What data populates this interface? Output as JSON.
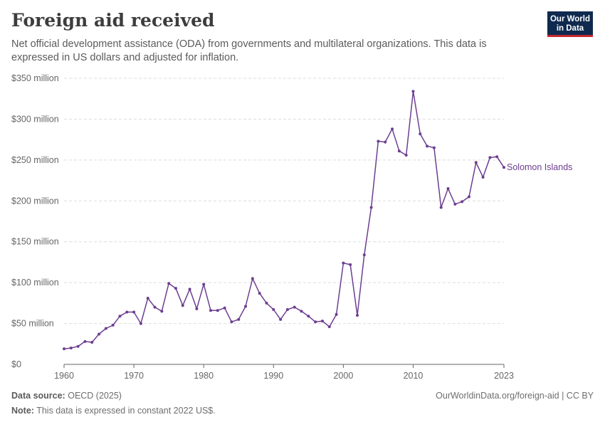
{
  "header": {
    "title": "Foreign aid received",
    "subtitle": "Net official development assistance (ODA) from governments and multilateral organizations. This data is expressed in US dollars and adjusted for inflation.",
    "logo_line1": "Our World",
    "logo_line2": "in Data"
  },
  "footer": {
    "source_label": "Data source:",
    "source_value": "OECD (2025)",
    "note_label": "Note:",
    "note_value": "This data is expressed in constant 2022 US$.",
    "url": "OurWorldinData.org/foreign-aid | CC BY"
  },
  "colors": {
    "series": "#6d3e91",
    "grid": "#dddddd",
    "axis": "#666666"
  },
  "chart_data": {
    "type": "line",
    "xlim": [
      1960,
      2023
    ],
    "ylim": [
      0,
      350
    ],
    "x_ticks": [
      1960,
      1970,
      1980,
      1990,
      2000,
      2010,
      2023
    ],
    "y_ticks": [
      0,
      50,
      100,
      150,
      200,
      250,
      300,
      350
    ],
    "y_tick_labels": [
      "$0",
      "$50 million",
      "$100 million",
      "$150 million",
      "$200 million",
      "$250 million",
      "$300 million",
      "$350 million"
    ],
    "grid": "horizontal",
    "series": [
      {
        "name": "Solomon Islands",
        "x": [
          1960,
          1961,
          1962,
          1963,
          1964,
          1965,
          1966,
          1967,
          1968,
          1969,
          1970,
          1971,
          1972,
          1973,
          1974,
          1975,
          1976,
          1977,
          1978,
          1979,
          1980,
          1981,
          1982,
          1983,
          1984,
          1985,
          1986,
          1987,
          1988,
          1989,
          1990,
          1991,
          1992,
          1993,
          1994,
          1995,
          1996,
          1997,
          1998,
          1999,
          2000,
          2001,
          2002,
          2003,
          2004,
          2005,
          2006,
          2007,
          2008,
          2009,
          2010,
          2011,
          2012,
          2013,
          2014,
          2015,
          2016,
          2017,
          2018,
          2019,
          2020,
          2021,
          2022,
          2023
        ],
        "y": [
          19,
          20,
          22,
          28,
          27,
          37,
          44,
          48,
          59,
          64,
          64,
          50,
          81,
          70,
          65,
          99,
          93,
          72,
          92,
          68,
          98,
          66,
          66,
          69,
          52,
          55,
          71,
          105,
          87,
          75,
          67,
          55,
          67,
          70,
          65,
          59,
          52,
          53,
          46,
          61,
          124,
          122,
          60,
          134,
          192,
          273,
          272,
          288,
          261,
          256,
          334,
          282,
          267,
          265,
          192,
          215,
          196,
          199,
          205,
          247,
          229,
          253,
          254,
          241
        ]
      }
    ]
  }
}
